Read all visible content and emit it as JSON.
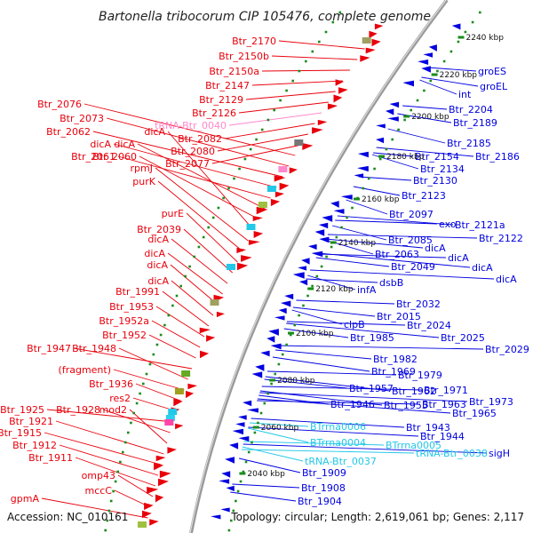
{
  "title": "Bartonella tribocorum CIP 105476, complete genome",
  "accession": "Accession: NC_010161",
  "topology": "Topology: circular; Length: 2,619,061 bp; Genes: 2,117",
  "colors": {
    "forward": "#e8000b",
    "reverse": "#0000e0",
    "trna": "#ff88cc",
    "rrna": "#22c8e8",
    "ruler_ticks": "#1a8c1a",
    "backbone": "#9a9a9a"
  },
  "kbp_labels": [
    "2240 kbp",
    "2220 kbp",
    "2200 kbp",
    "2180 kbp",
    "2160 kbp",
    "2140 kbp",
    "2120 kbp",
    "2100 kbp",
    "2080 kbp",
    "2060 kbp",
    "2040 kbp"
  ],
  "left_labels": [
    {
      "text": "Btr_2170",
      "kind": "forward"
    },
    {
      "text": "Btr_2150b",
      "kind": "forward"
    },
    {
      "text": "Btr_2150a",
      "kind": "forward"
    },
    {
      "text": "Btr_2147",
      "kind": "forward"
    },
    {
      "text": "Btr_2129",
      "kind": "forward"
    },
    {
      "text": "Btr_2126",
      "kind": "forward"
    },
    {
      "text": "tRNA-Btr_0040",
      "kind": "trna"
    },
    {
      "text": "Btr_2082",
      "kind": "forward"
    },
    {
      "text": "Btr_2080",
      "kind": "forward"
    },
    {
      "text": "Btr_2077",
      "kind": "forward"
    },
    {
      "text": "Btr_2076",
      "kind": "forward"
    },
    {
      "text": "Btr_2073",
      "kind": "forward"
    },
    {
      "text": "Btr_2062",
      "kind": "forward"
    },
    {
      "text": "dicA",
      "kind": "forward"
    },
    {
      "text": "Btr_2061",
      "kind": "forward"
    },
    {
      "text": "dicA",
      "kind": "forward"
    },
    {
      "text": "Btr_2060",
      "kind": "forward"
    },
    {
      "text": "dicA",
      "kind": "forward"
    },
    {
      "text": "rpmJ",
      "kind": "forward"
    },
    {
      "text": "purK",
      "kind": "forward"
    },
    {
      "text": "purE",
      "kind": "forward"
    },
    {
      "text": "Btr_2039",
      "kind": "forward"
    },
    {
      "text": "dicA",
      "kind": "forward"
    },
    {
      "text": "dicA",
      "kind": "forward"
    },
    {
      "text": "dicA",
      "kind": "forward"
    },
    {
      "text": "dicA",
      "kind": "forward"
    },
    {
      "text": "Btr_1991",
      "kind": "forward"
    },
    {
      "text": "Btr_1953",
      "kind": "forward"
    },
    {
      "text": "Btr_1952a",
      "kind": "forward"
    },
    {
      "text": "Btr_1952",
      "kind": "forward"
    },
    {
      "text": "Btr_1947",
      "kind": "forward"
    },
    {
      "text": "Btr_1948",
      "kind": "forward"
    },
    {
      "text": "(fragment)",
      "kind": "forward"
    },
    {
      "text": "Btr_1936",
      "kind": "forward"
    },
    {
      "text": "res2",
      "kind": "forward"
    },
    {
      "text": "Btr_1925",
      "kind": "forward"
    },
    {
      "text": "Btr_1928",
      "kind": "forward"
    },
    {
      "text": "mod2",
      "kind": "forward"
    },
    {
      "text": "Btr_1921",
      "kind": "forward"
    },
    {
      "text": "Btr_1915",
      "kind": "forward"
    },
    {
      "text": "Btr_1912",
      "kind": "forward"
    },
    {
      "text": "Btr_1911",
      "kind": "forward"
    },
    {
      "text": "omp43",
      "kind": "forward"
    },
    {
      "text": "mccC",
      "kind": "forward"
    },
    {
      "text": "gpmA",
      "kind": "forward"
    }
  ],
  "right_labels": [
    {
      "text": "groES",
      "kind": "reverse"
    },
    {
      "text": "groEL",
      "kind": "reverse"
    },
    {
      "text": "int",
      "kind": "reverse"
    },
    {
      "text": "Btr_2204",
      "kind": "reverse"
    },
    {
      "text": "Btr_2189",
      "kind": "reverse"
    },
    {
      "text": "Btr_2185",
      "kind": "reverse"
    },
    {
      "text": "Btr_2154",
      "kind": "reverse"
    },
    {
      "text": "Btr_2186",
      "kind": "reverse"
    },
    {
      "text": "Btr_2134",
      "kind": "reverse"
    },
    {
      "text": "Btr_2130",
      "kind": "reverse"
    },
    {
      "text": "Btr_2123",
      "kind": "reverse"
    },
    {
      "text": "Btr_2097",
      "kind": "reverse"
    },
    {
      "text": "exo",
      "kind": "reverse"
    },
    {
      "text": "Btr_2121a",
      "kind": "reverse"
    },
    {
      "text": "Btr_2085",
      "kind": "reverse"
    },
    {
      "text": "Btr_2122",
      "kind": "reverse"
    },
    {
      "text": "dicA",
      "kind": "reverse"
    },
    {
      "text": "Btr_2063",
      "kind": "reverse"
    },
    {
      "text": "dicA",
      "kind": "reverse"
    },
    {
      "text": "Btr_2049",
      "kind": "reverse"
    },
    {
      "text": "dicA",
      "kind": "reverse"
    },
    {
      "text": "dsbB",
      "kind": "reverse"
    },
    {
      "text": "dicA",
      "kind": "reverse"
    },
    {
      "text": "infA",
      "kind": "reverse"
    },
    {
      "text": "Btr_2032",
      "kind": "reverse"
    },
    {
      "text": "Btr_2015",
      "kind": "reverse"
    },
    {
      "text": "clpB",
      "kind": "reverse"
    },
    {
      "text": "Btr_2024",
      "kind": "reverse"
    },
    {
      "text": "Btr_1985",
      "kind": "reverse"
    },
    {
      "text": "Btr_2025",
      "kind": "reverse"
    },
    {
      "text": "Btr_2029",
      "kind": "reverse"
    },
    {
      "text": "Btr_1982",
      "kind": "reverse"
    },
    {
      "text": "Btr_1969",
      "kind": "reverse"
    },
    {
      "text": "Btr_1979",
      "kind": "reverse"
    },
    {
      "text": "Btr_1957",
      "kind": "reverse"
    },
    {
      "text": "Btr_1962",
      "kind": "reverse"
    },
    {
      "text": "Btr_1971",
      "kind": "reverse"
    },
    {
      "text": "Btr_1946",
      "kind": "reverse"
    },
    {
      "text": "Btr_1955",
      "kind": "reverse"
    },
    {
      "text": "Btr_1963",
      "kind": "reverse"
    },
    {
      "text": "Btr_1973",
      "kind": "reverse"
    },
    {
      "text": "Btr_1965",
      "kind": "reverse"
    },
    {
      "text": "BTrrna0006",
      "kind": "rrna"
    },
    {
      "text": "Btr_1943",
      "kind": "reverse"
    },
    {
      "text": "BTrrna0004",
      "kind": "rrna"
    },
    {
      "text": "BTrrna0005",
      "kind": "rrna"
    },
    {
      "text": "Btr_1944",
      "kind": "reverse"
    },
    {
      "text": "tRNA-Btr_0037",
      "kind": "rrna"
    },
    {
      "text": "tRNA-Btr_0038",
      "kind": "rrna"
    },
    {
      "text": "sigH",
      "kind": "reverse"
    },
    {
      "text": "Btr_1909",
      "kind": "reverse"
    },
    {
      "text": "Btr_1908",
      "kind": "reverse"
    },
    {
      "text": "Btr_1904",
      "kind": "reverse"
    }
  ]
}
